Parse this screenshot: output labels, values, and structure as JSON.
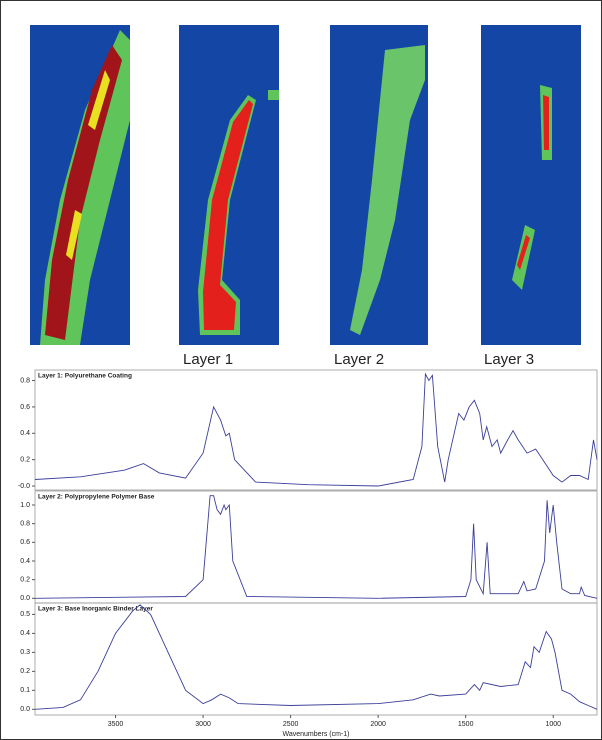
{
  "labels": [
    "Layer 1",
    "Layer 2",
    "Layer 3"
  ],
  "chart_data": [
    {
      "type": "line",
      "title": "Layer 1: Polyurethane Coating",
      "color": "#3b3f9a",
      "xlim": [
        3960,
        750
      ],
      "ylim": [
        -0.03,
        0.88
      ],
      "yticks": [
        {
          "value": 0,
          "label": "-0.0"
        },
        0.2,
        0.4,
        0.6,
        0.8
      ],
      "x": [
        3960,
        3700,
        3450,
        3340,
        3250,
        3100,
        3000,
        2940,
        2900,
        2870,
        2850,
        2820,
        2700,
        2400,
        2000,
        1800,
        1750,
        1730,
        1710,
        1690,
        1660,
        1620,
        1600,
        1540,
        1510,
        1480,
        1450,
        1420,
        1400,
        1380,
        1350,
        1320,
        1300,
        1260,
        1230,
        1200,
        1150,
        1100,
        1070,
        1000,
        950,
        900,
        850,
        800,
        770,
        750
      ],
      "values": [
        0.05,
        0.07,
        0.12,
        0.17,
        0.1,
        0.06,
        0.25,
        0.6,
        0.5,
        0.38,
        0.4,
        0.2,
        0.03,
        0.01,
        0.0,
        0.05,
        0.3,
        0.85,
        0.8,
        0.84,
        0.3,
        0.03,
        0.2,
        0.55,
        0.5,
        0.6,
        0.65,
        0.55,
        0.35,
        0.45,
        0.3,
        0.35,
        0.25,
        0.35,
        0.42,
        0.35,
        0.25,
        0.28,
        0.22,
        0.08,
        0.03,
        0.08,
        0.08,
        0.05,
        0.35,
        0.2
      ]
    },
    {
      "type": "line",
      "title": "Layer 2: Polypropylene Polymer Base",
      "color": "#3b3f9a",
      "xlim": [
        3960,
        750
      ],
      "ylim": [
        -0.05,
        1.15
      ],
      "yticks": [
        {
          "value": 0,
          "label": "0.0"
        },
        0.2,
        0.4,
        0.6,
        0.8,
        {
          "value": 1,
          "label": "1.0"
        }
      ],
      "x": [
        3960,
        3100,
        3000,
        2960,
        2940,
        2920,
        2900,
        2880,
        2870,
        2850,
        2830,
        2750,
        2000,
        1500,
        1470,
        1455,
        1440,
        1400,
        1378,
        1360,
        1300,
        1200,
        1168,
        1150,
        1100,
        1050,
        1035,
        1020,
        1000,
        980,
        950,
        900,
        850,
        840,
        820,
        750
      ],
      "values": [
        0.0,
        0.02,
        0.2,
        1.1,
        1.1,
        0.95,
        0.9,
        1.0,
        0.95,
        1.0,
        0.4,
        0.02,
        0.0,
        0.02,
        0.2,
        0.8,
        0.2,
        0.05,
        0.6,
        0.05,
        0.05,
        0.05,
        0.18,
        0.08,
        0.1,
        0.4,
        1.05,
        0.7,
        1.0,
        0.6,
        0.1,
        0.05,
        0.05,
        0.12,
        0.03,
        0.0
      ]
    },
    {
      "type": "line",
      "title": "Layer 3: Base Inorganic Binder Layer",
      "color": "#3b3f9a",
      "xlim": [
        3960,
        750
      ],
      "ylim": [
        -0.03,
        0.56
      ],
      "yticks": [
        {
          "value": 0,
          "label": "0.0"
        },
        0.1,
        0.2,
        0.3,
        0.4,
        0.5
      ],
      "xticks": [
        3500,
        3000,
        2500,
        2000,
        1500,
        1000
      ],
      "xlabel": "Wavenumbers (cm-1)",
      "x": [
        3960,
        3800,
        3700,
        3600,
        3500,
        3400,
        3360,
        3300,
        3200,
        3100,
        3000,
        2950,
        2900,
        2850,
        2800,
        2500,
        2000,
        1800,
        1700,
        1650,
        1500,
        1450,
        1420,
        1400,
        1300,
        1200,
        1160,
        1130,
        1110,
        1080,
        1040,
        1010,
        990,
        950,
        900,
        850,
        800,
        750
      ],
      "values": [
        0.0,
        0.01,
        0.05,
        0.2,
        0.4,
        0.52,
        0.55,
        0.5,
        0.3,
        0.1,
        0.03,
        0.05,
        0.08,
        0.06,
        0.03,
        0.02,
        0.03,
        0.05,
        0.08,
        0.07,
        0.08,
        0.13,
        0.1,
        0.14,
        0.12,
        0.13,
        0.25,
        0.22,
        0.33,
        0.3,
        0.41,
        0.37,
        0.3,
        0.1,
        0.08,
        0.04,
        0.02,
        0.0
      ]
    }
  ]
}
